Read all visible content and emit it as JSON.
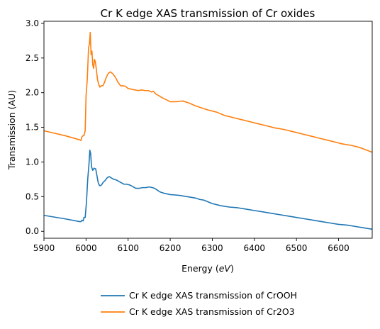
{
  "chart_data": {
    "type": "line",
    "title": "Cr K edge XAS transmission of Cr oxides",
    "xlabel": "Energy (eV)",
    "xlabel_parts": [
      "Energy (",
      "eV",
      ")"
    ],
    "ylabel": "Transmission (AU)",
    "xlim": [
      5900,
      6680
    ],
    "ylim": [
      -0.1,
      3.03
    ],
    "xticks": [
      5900,
      6000,
      6100,
      6200,
      6300,
      6400,
      6500,
      6600
    ],
    "yticks": [
      0.0,
      0.5,
      1.0,
      1.5,
      2.0,
      2.5,
      3.0
    ],
    "xtick_labels": [
      "5900",
      "6000",
      "6100",
      "6200",
      "6300",
      "6400",
      "6500",
      "6600"
    ],
    "ytick_labels": [
      "0.0",
      "0.5",
      "1.0",
      "1.5",
      "2.0",
      "2.5",
      "3.0"
    ],
    "grid": false,
    "legend_position": "bottom-center",
    "series": [
      {
        "name": "Cr K edge XAS transmission of CrOOH",
        "color": "#1f77b4",
        "x": [
          5900,
          5950,
          5985,
          5988,
          5990,
          5993,
          5995,
          5998,
          6001,
          6004,
          6007,
          6009,
          6011,
          6013,
          6016,
          6019,
          6023,
          6026,
          6029,
          6032,
          6035,
          6038,
          6041,
          6045,
          6050,
          6055,
          6060,
          6066,
          6072,
          6078,
          6084,
          6090,
          6096,
          6103,
          6110,
          6118,
          6126,
          6134,
          6142,
          6150,
          6158,
          6163,
          6168,
          6175,
          6185,
          6200,
          6220,
          6240,
          6260,
          6270,
          6280,
          6300,
          6320,
          6340,
          6360,
          6380,
          6400,
          6420,
          6440,
          6460,
          6480,
          6500,
          6520,
          6540,
          6560,
          6580,
          6600,
          6620,
          6640,
          6660,
          6680
        ],
        "y": [
          0.23,
          0.18,
          0.14,
          0.14,
          0.16,
          0.15,
          0.2,
          0.2,
          0.42,
          0.75,
          0.97,
          1.17,
          1.12,
          0.93,
          0.88,
          0.91,
          0.9,
          0.8,
          0.7,
          0.66,
          0.66,
          0.68,
          0.71,
          0.73,
          0.77,
          0.79,
          0.77,
          0.75,
          0.74,
          0.72,
          0.7,
          0.68,
          0.68,
          0.67,
          0.65,
          0.62,
          0.62,
          0.63,
          0.63,
          0.64,
          0.63,
          0.62,
          0.6,
          0.57,
          0.55,
          0.53,
          0.52,
          0.5,
          0.48,
          0.46,
          0.45,
          0.4,
          0.37,
          0.35,
          0.34,
          0.32,
          0.3,
          0.28,
          0.26,
          0.24,
          0.22,
          0.2,
          0.18,
          0.16,
          0.14,
          0.12,
          0.1,
          0.09,
          0.07,
          0.05,
          0.03
        ]
      },
      {
        "name": "Cr K edge XAS transmission of Cr2O3",
        "color": "#ff7f0e",
        "x": [
          5900,
          5950,
          5985,
          5988,
          5990,
          5993,
          5995,
          5998,
          6000,
          6003,
          6006,
          6008,
          6010,
          6012,
          6014,
          6016,
          6018,
          6020,
          6022,
          6024,
          6027,
          6030,
          6033,
          6036,
          6040,
          6044,
          6048,
          6053,
          6058,
          6064,
          6070,
          6076,
          6082,
          6088,
          6094,
          6100,
          6108,
          6116,
          6124,
          6132,
          6140,
          6148,
          6156,
          6160,
          6163,
          6166,
          6172,
          6180,
          6190,
          6200,
          6215,
          6230,
          6245,
          6260,
          6275,
          6290,
          6310,
          6330,
          6350,
          6370,
          6390,
          6410,
          6430,
          6450,
          6470,
          6490,
          6510,
          6530,
          6550,
          6570,
          6590,
          6610,
          6630,
          6650,
          6680
        ],
        "y": [
          1.45,
          1.38,
          1.32,
          1.31,
          1.36,
          1.38,
          1.38,
          1.45,
          1.95,
          2.2,
          2.65,
          2.7,
          2.87,
          2.55,
          2.6,
          2.4,
          2.35,
          2.48,
          2.45,
          2.36,
          2.2,
          2.12,
          2.08,
          2.1,
          2.1,
          2.15,
          2.22,
          2.28,
          2.3,
          2.27,
          2.22,
          2.15,
          2.1,
          2.1,
          2.09,
          2.06,
          2.05,
          2.04,
          2.03,
          2.04,
          2.03,
          2.03,
          2.01,
          2.02,
          2.0,
          1.98,
          1.96,
          1.93,
          1.9,
          1.87,
          1.87,
          1.88,
          1.85,
          1.81,
          1.78,
          1.75,
          1.72,
          1.67,
          1.64,
          1.61,
          1.58,
          1.55,
          1.52,
          1.49,
          1.47,
          1.44,
          1.41,
          1.38,
          1.35,
          1.32,
          1.29,
          1.26,
          1.24,
          1.21,
          1.14
        ]
      }
    ]
  }
}
